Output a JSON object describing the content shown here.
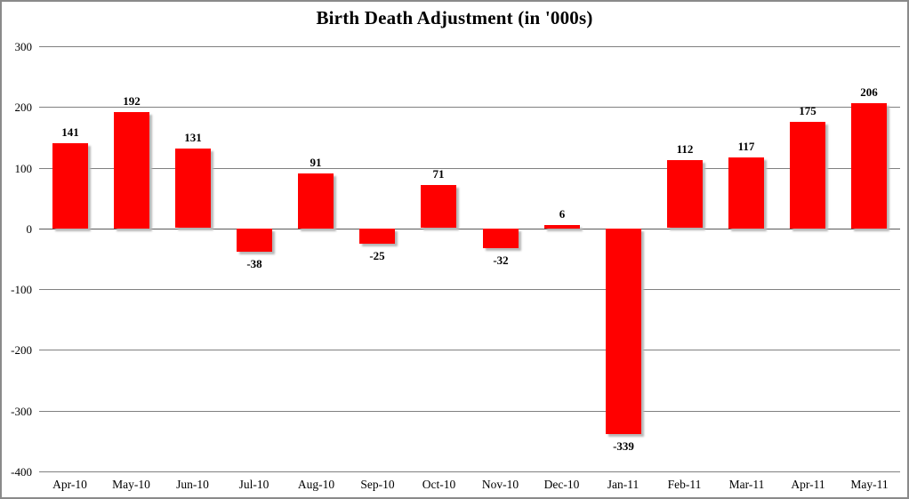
{
  "chart_data": {
    "type": "bar",
    "title": "Birth Death Adjustment (in '000s)",
    "categories": [
      "Apr-10",
      "May-10",
      "Jun-10",
      "Jul-10",
      "Aug-10",
      "Sep-10",
      "Oct-10",
      "Nov-10",
      "Dec-10",
      "Jan-11",
      "Feb-11",
      "Mar-11",
      "Apr-11",
      "May-11"
    ],
    "values": [
      141,
      192,
      131,
      -38,
      91,
      -25,
      71,
      -32,
      6,
      -339,
      112,
      117,
      175,
      206
    ],
    "value_labels": [
      "141",
      "192",
      "131",
      "-38",
      "91",
      "-25",
      "71",
      "-32",
      "6",
      "-339",
      "112",
      "117",
      "175",
      "206"
    ],
    "y_tick_labels": [
      "300",
      "200",
      "100",
      "0",
      "-100",
      "-200",
      "-300",
      "-400"
    ],
    "y_ticks": [
      300,
      200,
      100,
      0,
      -100,
      -200,
      -300,
      -400
    ],
    "ylim": [
      -400,
      300
    ],
    "ytick_step": 100,
    "xlabel": "",
    "ylabel": "",
    "grid": "on",
    "legend": "none",
    "bar_color": "#ff0000",
    "shadow_color": "#b8b8b8",
    "gridline_color": "#808080",
    "background_color": "#ffffff",
    "text_color": "#000000"
  }
}
